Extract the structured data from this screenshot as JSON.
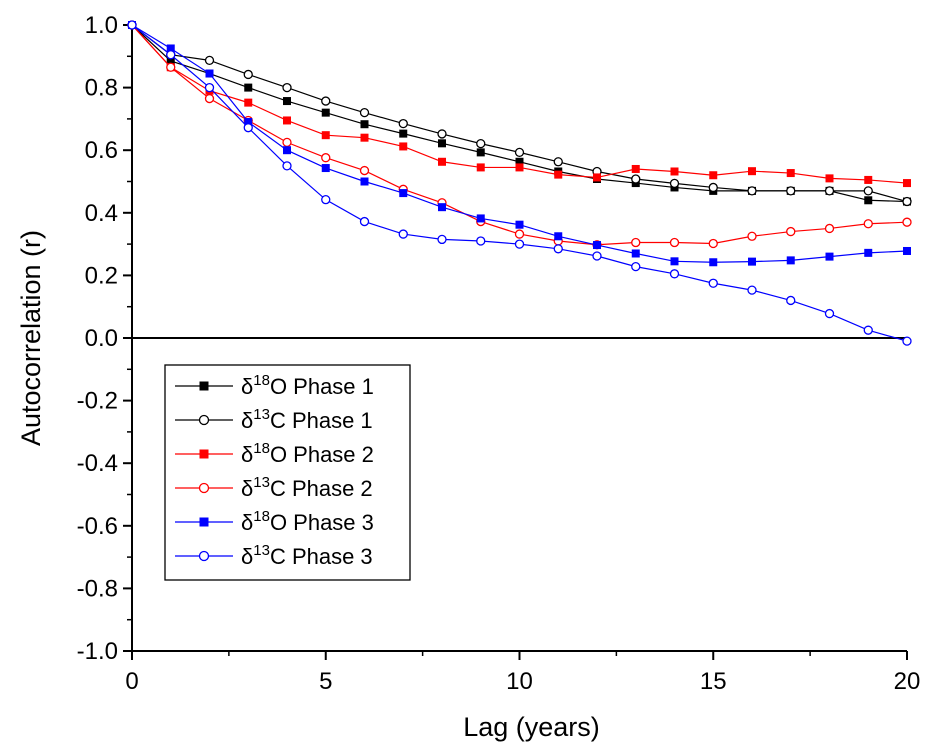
{
  "chart_data": {
    "type": "line",
    "title": "",
    "xlabel": "Lag (years)",
    "ylabel": "Autocorrelation (r)",
    "xlim": [
      0,
      20
    ],
    "ylim": [
      -1.0,
      1.0
    ],
    "x_ticks": [
      0,
      5,
      10,
      15,
      20
    ],
    "x_tick_labels": [
      "0",
      "5",
      "10",
      "15",
      "20"
    ],
    "y_ticks": [
      -1.0,
      -0.8,
      -0.6,
      -0.4,
      -0.2,
      0.0,
      0.2,
      0.4,
      0.6,
      0.8,
      1.0
    ],
    "y_tick_labels": [
      "-1.0",
      "-0.8",
      "-0.6",
      "-0.4",
      "-0.2",
      "0.0",
      "0.2",
      "0.4",
      "0.6",
      "0.8",
      "1.0"
    ],
    "grid": false,
    "zero_line": true,
    "legend_position": "lower-left",
    "x": [
      0,
      1,
      2,
      3,
      4,
      5,
      6,
      7,
      8,
      9,
      10,
      11,
      12,
      13,
      14,
      15,
      16,
      17,
      18,
      19,
      20
    ],
    "series": [
      {
        "name_prefix": "δ",
        "name_sup": "18",
        "name_suffix": "O Phase 1",
        "color": "#000000",
        "marker": "filled-square",
        "values": [
          1.0,
          0.885,
          0.845,
          0.8,
          0.757,
          0.72,
          0.683,
          0.653,
          0.622,
          0.593,
          0.563,
          0.532,
          0.508,
          0.495,
          0.481,
          0.47,
          0.47,
          0.47,
          0.47,
          0.44,
          0.436
        ]
      },
      {
        "name_prefix": "δ",
        "name_sup": "13",
        "name_suffix": "C Phase 1",
        "color": "#000000",
        "marker": "open-circle",
        "values": [
          1.0,
          0.905,
          0.887,
          0.842,
          0.8,
          0.757,
          0.72,
          0.685,
          0.652,
          0.621,
          0.593,
          0.563,
          0.532,
          0.508,
          0.494,
          0.481,
          0.47,
          0.47,
          0.47,
          0.47,
          0.436
        ]
      },
      {
        "name_prefix": "δ",
        "name_sup": "18",
        "name_suffix": "O Phase 2",
        "color": "#ff0000",
        "marker": "filled-square",
        "values": [
          1.0,
          0.865,
          0.79,
          0.752,
          0.695,
          0.648,
          0.64,
          0.612,
          0.563,
          0.545,
          0.545,
          0.522,
          0.513,
          0.54,
          0.532,
          0.52,
          0.533,
          0.527,
          0.51,
          0.505,
          0.495
        ]
      },
      {
        "name_prefix": "δ",
        "name_sup": "13",
        "name_suffix": "C Phase 2",
        "color": "#ff0000",
        "marker": "open-circle",
        "values": [
          1.0,
          0.865,
          0.765,
          0.695,
          0.625,
          0.576,
          0.535,
          0.475,
          0.432,
          0.372,
          0.332,
          0.31,
          0.298,
          0.305,
          0.305,
          0.302,
          0.325,
          0.34,
          0.35,
          0.365,
          0.37
        ]
      },
      {
        "name_prefix": "δ",
        "name_sup": "18",
        "name_suffix": "O Phase 3",
        "color": "#0000ff",
        "marker": "filled-square",
        "values": [
          1.0,
          0.925,
          0.845,
          0.69,
          0.6,
          0.543,
          0.5,
          0.463,
          0.418,
          0.382,
          0.362,
          0.325,
          0.297,
          0.27,
          0.245,
          0.242,
          0.244,
          0.248,
          0.26,
          0.272,
          0.278
        ]
      },
      {
        "name_prefix": "δ",
        "name_sup": "13",
        "name_suffix": "C Phase 3",
        "color": "#0000ff",
        "marker": "open-circle",
        "values": [
          1.0,
          0.905,
          0.8,
          0.672,
          0.55,
          0.442,
          0.372,
          0.332,
          0.315,
          0.31,
          0.3,
          0.285,
          0.262,
          0.228,
          0.205,
          0.175,
          0.153,
          0.12,
          0.078,
          0.025,
          -0.01
        ]
      }
    ]
  }
}
